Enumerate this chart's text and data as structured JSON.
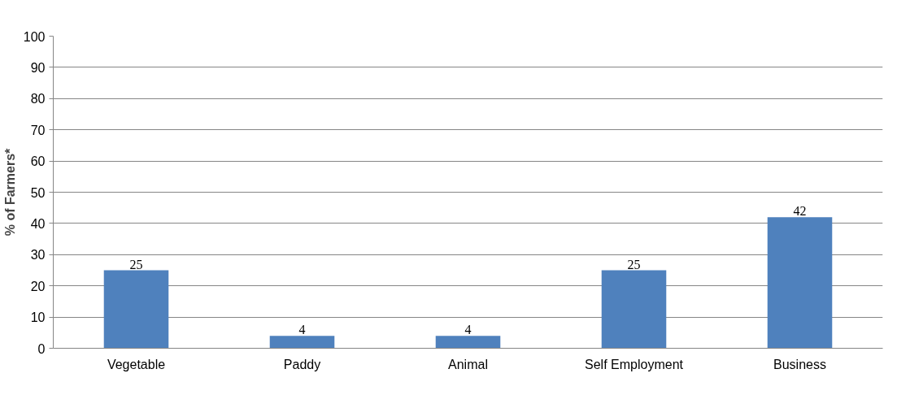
{
  "chart_data": {
    "type": "bar",
    "ylabel": "% of Farmers*",
    "categories": [
      "Vegetable",
      "Paddy",
      "Animal",
      "Self Employment",
      "Business"
    ],
    "values": [
      25,
      4,
      4,
      25,
      42
    ],
    "color": "#4f81bd",
    "ylim": [
      0,
      100
    ],
    "yticks": [
      0,
      10,
      20,
      30,
      40,
      50,
      60,
      70,
      80,
      90,
      100
    ],
    "grid": "y",
    "data_labels": true
  }
}
